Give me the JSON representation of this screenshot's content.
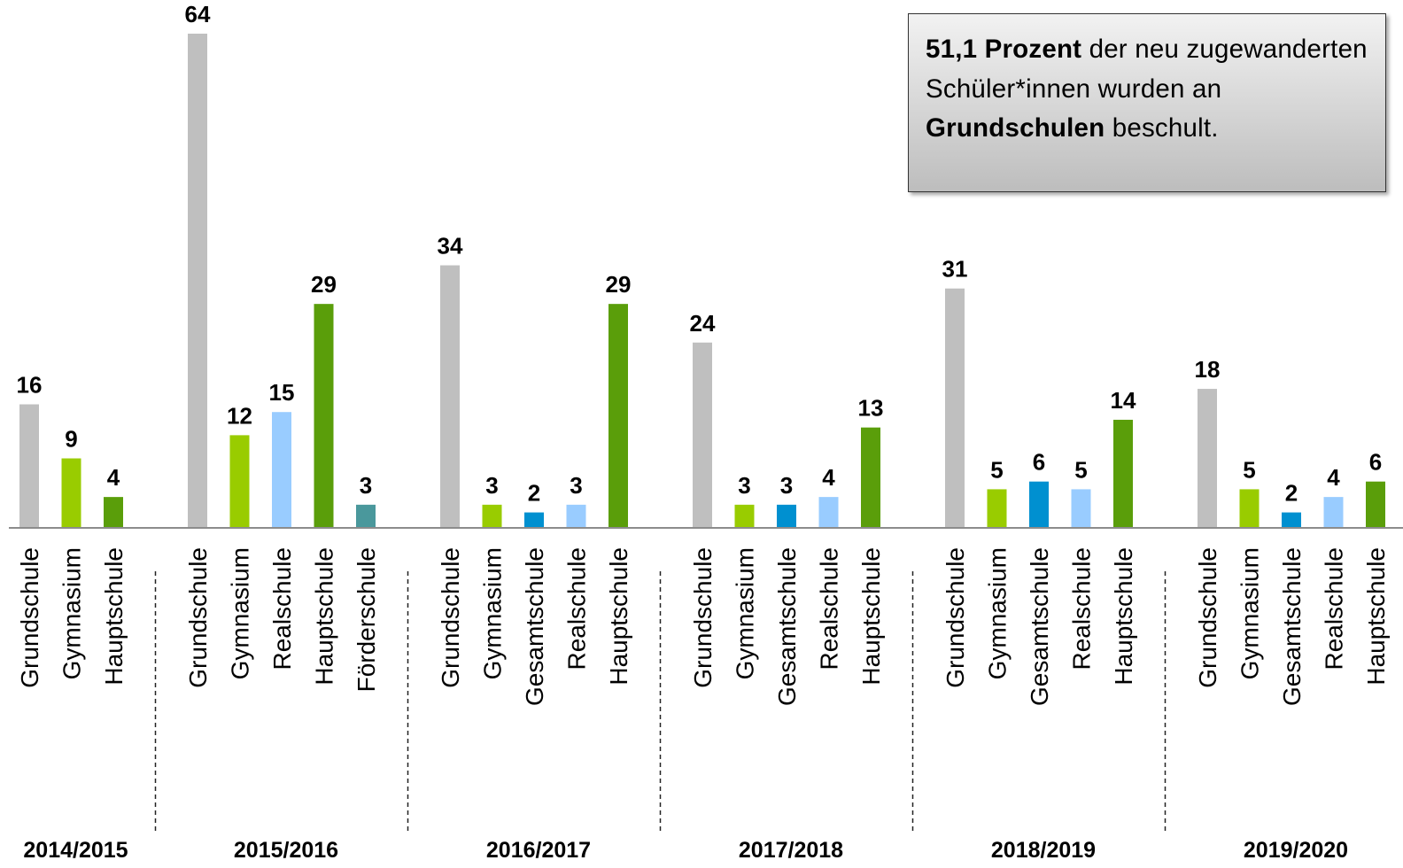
{
  "chart_data": {
    "type": "bar",
    "annotation": [
      {
        "text": "51,1 Prozent",
        "bold": true
      },
      {
        "text": " der neu zugewanderten Schüler*innen wurden an ",
        "bold": false
      },
      {
        "text": "Grundschulen",
        "bold": true
      },
      {
        "text": " beschult.",
        "bold": false
      }
    ],
    "groups": [
      {
        "name": "2014/2015",
        "bars": [
          {
            "category": "Grundschule",
            "value": 16,
            "color": "#bfbfbf"
          },
          {
            "category": "Gymnasium",
            "value": 9,
            "color": "#99cc00"
          },
          {
            "category": "Hauptschule",
            "value": 4,
            "color": "#5a9e0a"
          }
        ]
      },
      {
        "name": "2015/2016",
        "bars": [
          {
            "category": "Grundschule",
            "value": 64,
            "color": "#bfbfbf"
          },
          {
            "category": "Gymnasium",
            "value": 12,
            "color": "#99cc00"
          },
          {
            "category": "Realschule",
            "value": 15,
            "color": "#99ccff"
          },
          {
            "category": "Hauptschule",
            "value": 29,
            "color": "#5a9e0a"
          },
          {
            "category": "Förderschule",
            "value": 3,
            "color": "#4a989c"
          }
        ]
      },
      {
        "name": "2016/2017",
        "bars": [
          {
            "category": "Grundschule",
            "value": 34,
            "color": "#bfbfbf"
          },
          {
            "category": "Gymnasium",
            "value": 3,
            "color": "#99cc00"
          },
          {
            "category": "Gesamtschule",
            "value": 2,
            "color": "#0090d0"
          },
          {
            "category": "Realschule",
            "value": 3,
            "color": "#99ccff"
          },
          {
            "category": "Hauptschule",
            "value": 29,
            "color": "#5a9e0a"
          }
        ]
      },
      {
        "name": "2017/2018",
        "bars": [
          {
            "category": "Grundschule",
            "value": 24,
            "color": "#bfbfbf"
          },
          {
            "category": "Gymnasium",
            "value": 3,
            "color": "#99cc00"
          },
          {
            "category": "Gesamtschule",
            "value": 3,
            "color": "#0090d0"
          },
          {
            "category": "Realschule",
            "value": 4,
            "color": "#99ccff"
          },
          {
            "category": "Hauptschule",
            "value": 13,
            "color": "#5a9e0a"
          }
        ]
      },
      {
        "name": "2018/2019",
        "bars": [
          {
            "category": "Grundschule",
            "value": 31,
            "color": "#bfbfbf"
          },
          {
            "category": "Gymnasium",
            "value": 5,
            "color": "#99cc00"
          },
          {
            "category": "Gesamtschule",
            "value": 6,
            "color": "#0090d0"
          },
          {
            "category": "Realschule",
            "value": 5,
            "color": "#99ccff"
          },
          {
            "category": "Hauptschule",
            "value": 14,
            "color": "#5a9e0a"
          }
        ]
      },
      {
        "name": "2019/2020",
        "bars": [
          {
            "category": "Grundschule",
            "value": 18,
            "color": "#bfbfbf"
          },
          {
            "category": "Gymnasium",
            "value": 5,
            "color": "#99cc00"
          },
          {
            "category": "Gesamtschule",
            "value": 2,
            "color": "#0090d0"
          },
          {
            "category": "Realschule",
            "value": 4,
            "color": "#99ccff"
          },
          {
            "category": "Hauptschule",
            "value": 6,
            "color": "#5a9e0a"
          }
        ]
      }
    ]
  }
}
